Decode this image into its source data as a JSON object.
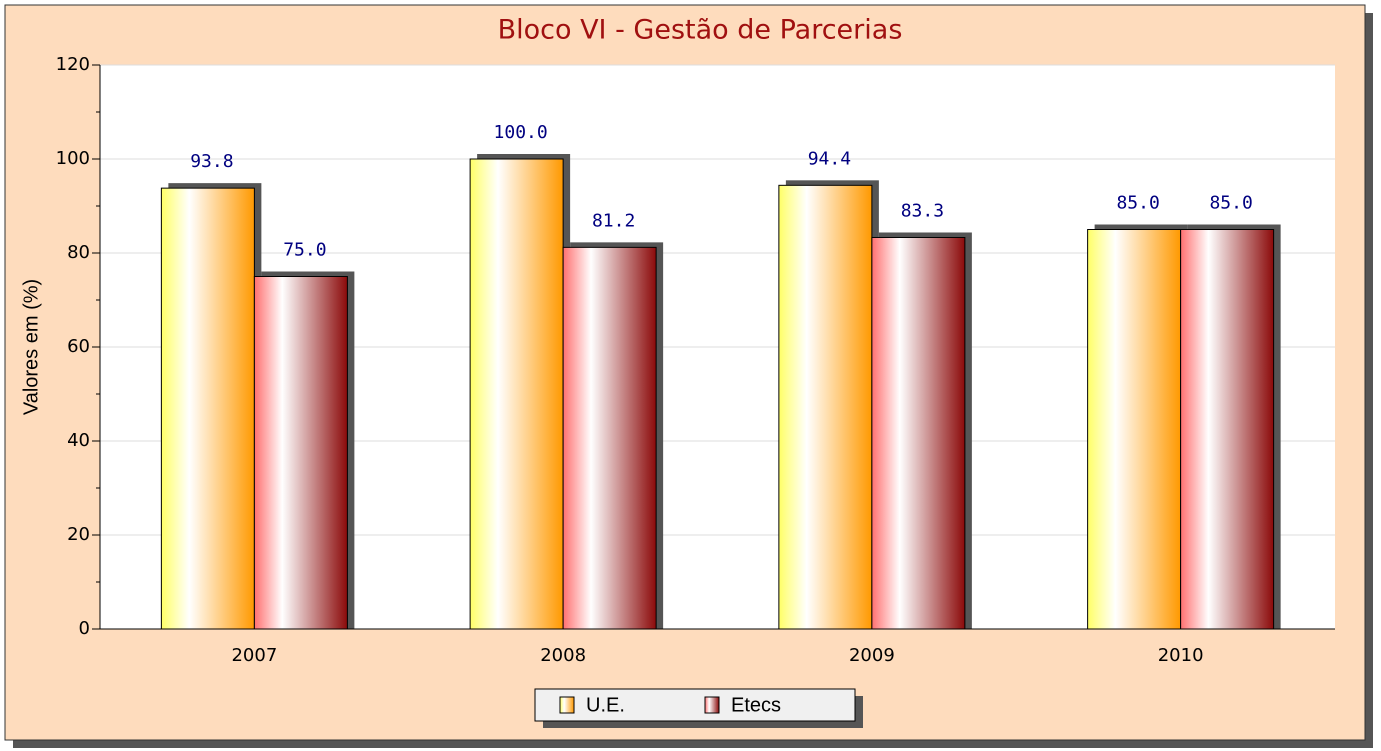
{
  "chart_data": {
    "type": "bar",
    "title": "Bloco VI - Gestão de Parcerias",
    "y_label": "Valores em (%)",
    "categories": [
      "2007",
      "2008",
      "2009",
      "2010"
    ],
    "series": [
      {
        "name": "U.E.",
        "color": "#ff9900",
        "values": [
          93.8,
          100,
          94.4,
          85
        ],
        "value_labels": [
          "93.8",
          "100.0",
          "94.4",
          "85.0"
        ]
      },
      {
        "name": "Etecs",
        "color": "#8b0a0a",
        "values": [
          75,
          81.2,
          83.3,
          85
        ],
        "value_labels": [
          "75.0",
          "81.2",
          "83.3",
          "85.0"
        ]
      }
    ],
    "ylim": [
      0,
      120
    ],
    "yticks": [
      0,
      20,
      40,
      60,
      80,
      100,
      120
    ],
    "grid": true
  }
}
